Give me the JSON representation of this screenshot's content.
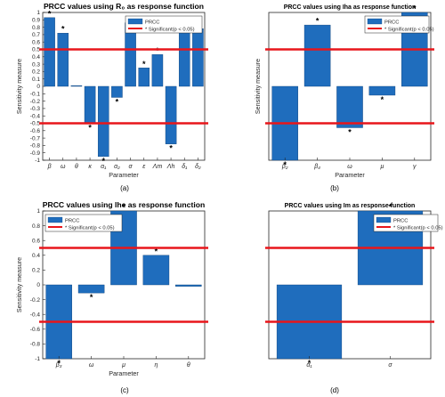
{
  "colors": {
    "bar": "#1f6dbd",
    "bar_edge": "#0b3f78",
    "threshold": "#e8161b",
    "axis": "#262626",
    "grid": "#e6e6e6"
  },
  "legend_labels": [
    "PRCC",
    "* Significant(p < 0.05)"
  ],
  "chart_data": [
    {
      "type": "bar",
      "title": "PRCC values using  R₀ as response function",
      "xlabel": "Parameter",
      "ylabel": "Sensitivity measure",
      "panel_label": "(a)",
      "categories": [
        "β",
        "ω",
        "θ",
        "κ",
        "α₁",
        "α₂",
        "σ",
        "ε",
        "Λm",
        "Λh",
        "δ₁",
        "δ₂"
      ],
      "values": [
        0.93,
        0.72,
        0.01,
        -0.5,
        -0.95,
        -0.15,
        0.86,
        0.25,
        0.43,
        -0.78,
        0.78,
        0.78
      ],
      "significant": [
        true,
        true,
        false,
        true,
        true,
        true,
        false,
        true,
        true,
        true,
        false,
        false
      ],
      "ylim": [
        -1,
        1
      ],
      "yticks": [
        -1,
        -0.9,
        -0.8,
        -0.7,
        -0.6,
        -0.5,
        -0.4,
        -0.3,
        -0.2,
        -0.1,
        0,
        0.1,
        0.2,
        0.3,
        0.4,
        0.5,
        0.6,
        0.7,
        0.8,
        0.9,
        1
      ],
      "thresholds": [
        0.5,
        -0.5
      ],
      "legend": "top-right",
      "grid": false
    },
    {
      "type": "bar",
      "title": "PRCC values using  Iha as response function",
      "xlabel": "Parameter",
      "ylabel": "Sensitivity measure",
      "panel_label": "(b)",
      "categories": [
        "β₂",
        "β₄",
        "ω",
        "μ",
        "γ"
      ],
      "values": [
        -1.0,
        0.83,
        -0.56,
        -0.12,
        1.0
      ],
      "significant": [
        true,
        true,
        true,
        true,
        true
      ],
      "ylim": [
        -1,
        1
      ],
      "yticks": [],
      "thresholds": [
        0.5,
        -0.5
      ],
      "legend": "top-right",
      "grid": false
    },
    {
      "type": "bar",
      "title": "PRCC values using  Ihe as response function",
      "xlabel": "Parameter",
      "ylabel": "Sensitivity measure",
      "panel_label": "(c)",
      "categories": [
        "β₃",
        "ω",
        "μ",
        "η",
        "θ"
      ],
      "values": [
        -1.0,
        -0.11,
        1.0,
        0.4,
        -0.02
      ],
      "significant": [
        true,
        true,
        true,
        true,
        false
      ],
      "ylim": [
        -1,
        1
      ],
      "yticks": [
        -1,
        -0.8,
        -0.6,
        -0.4,
        -0.2,
        0,
        0.2,
        0.4,
        0.6,
        0.8,
        1
      ],
      "thresholds": [
        0.5,
        -0.5
      ],
      "legend": "top-left",
      "grid": false
    },
    {
      "type": "bar",
      "title": "PRCC values using  Im as response function",
      "xlabel": "",
      "ylabel": "",
      "panel_label": "(d)",
      "categories": [
        "α₁",
        "σ"
      ],
      "values": [
        -1.0,
        1.0
      ],
      "significant": [
        true,
        true
      ],
      "ylim": [
        -1,
        1
      ],
      "yticks": [],
      "thresholds": [
        0.5,
        -0.5
      ],
      "legend": "top-right",
      "grid": false
    }
  ]
}
